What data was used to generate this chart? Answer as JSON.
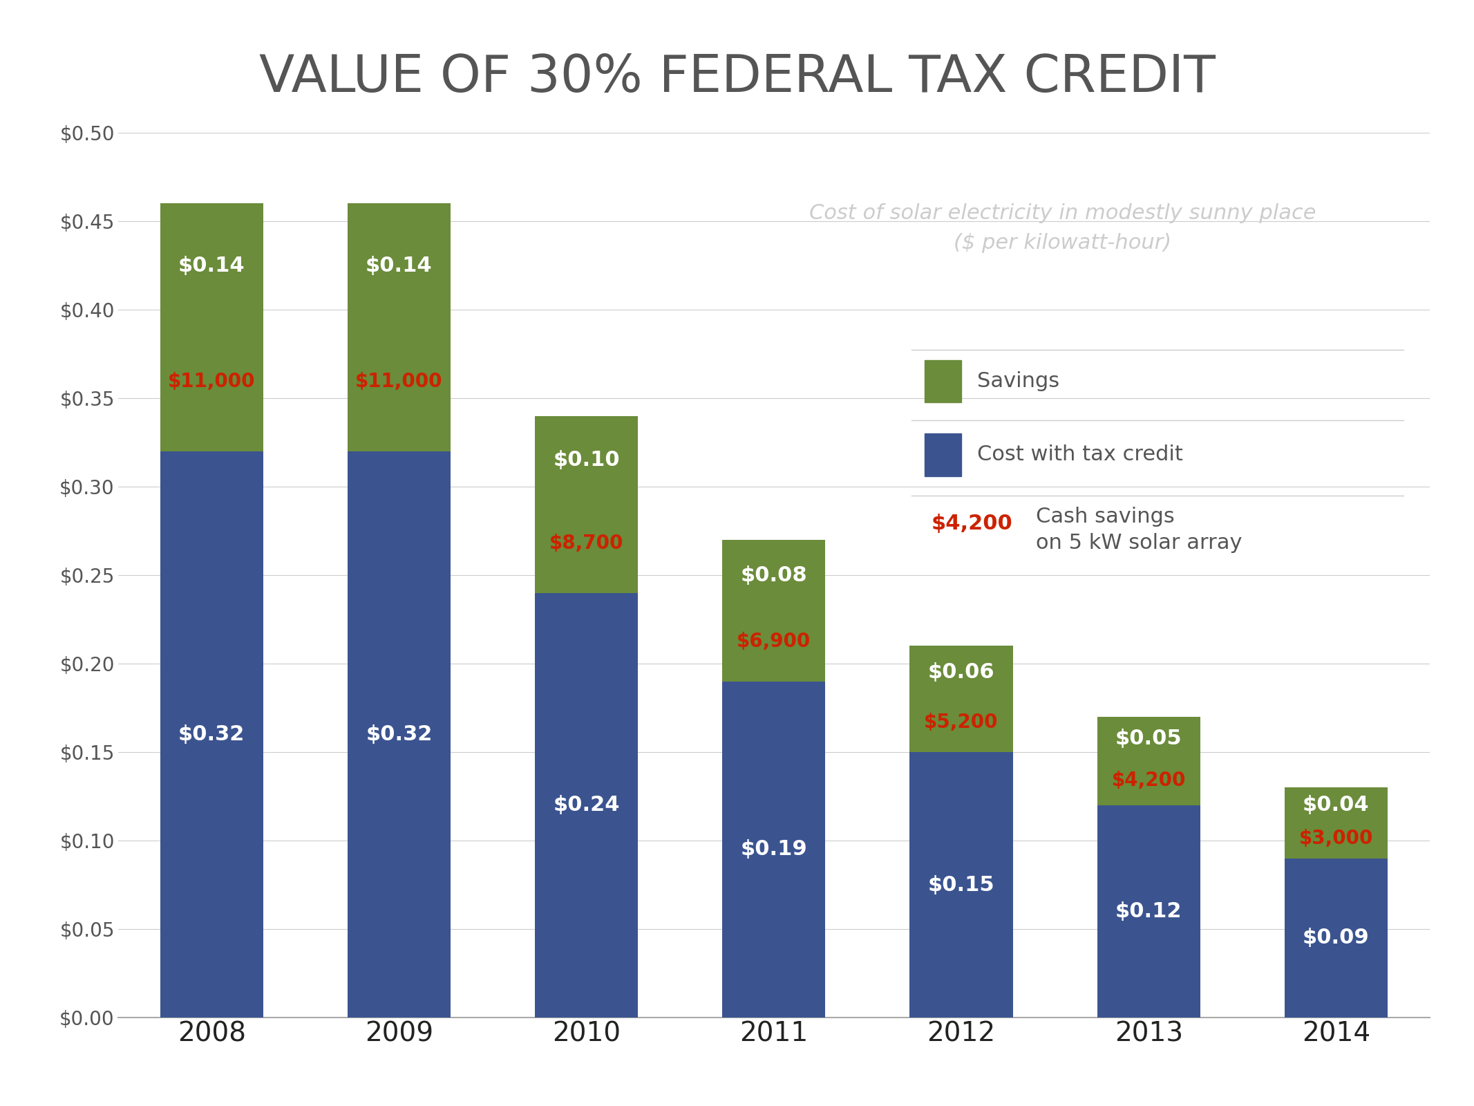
{
  "title": "VALUE OF 30% FEDERAL TAX CREDIT",
  "years": [
    "2008",
    "2009",
    "2010",
    "2011",
    "2012",
    "2013",
    "2014"
  ],
  "cost_with_credit": [
    0.32,
    0.32,
    0.24,
    0.19,
    0.15,
    0.12,
    0.09
  ],
  "savings": [
    0.14,
    0.14,
    0.1,
    0.08,
    0.06,
    0.05,
    0.04
  ],
  "cash_savings": [
    "$11,000",
    "$11,000",
    "$8,700",
    "$6,900",
    "$5,200",
    "$4,200",
    "$3,000"
  ],
  "cost_labels": [
    "$0.32",
    "$0.32",
    "$0.24",
    "$0.19",
    "$0.15",
    "$0.12",
    "$0.09"
  ],
  "savings_labels": [
    "$0.14",
    "$0.14",
    "$0.10",
    "$0.08",
    "$0.06",
    "$0.05",
    "$0.04"
  ],
  "blue_color": "#3B5490",
  "green_color": "#6B8C3A",
  "cash_color": "#CC2200",
  "title_color": "#555555",
  "subtitle_color": "#CCCCCC",
  "label_color": "#555555",
  "background_color": "#FFFFFF",
  "ytick_vals": [
    0.0,
    0.05,
    0.1,
    0.15,
    0.2,
    0.25,
    0.3,
    0.35,
    0.4,
    0.45,
    0.5
  ],
  "ylabel_ticks": [
    "$0.00",
    "$0.05",
    "$0.10",
    "$0.15",
    "$0.20",
    "$0.25",
    "$0.30",
    "$0.35",
    "$0.40",
    "$0.45",
    "$0.50"
  ],
  "subtitle_text1": "Cost of solar electricity in modestly sunny place",
  "subtitle_text2": "($ per kilowatt-hour)",
  "legend_savings": "Savings",
  "legend_cost": "Cost with tax credit",
  "legend_cash1": "Cash savings",
  "legend_cash2": "on 5 kW solar array"
}
